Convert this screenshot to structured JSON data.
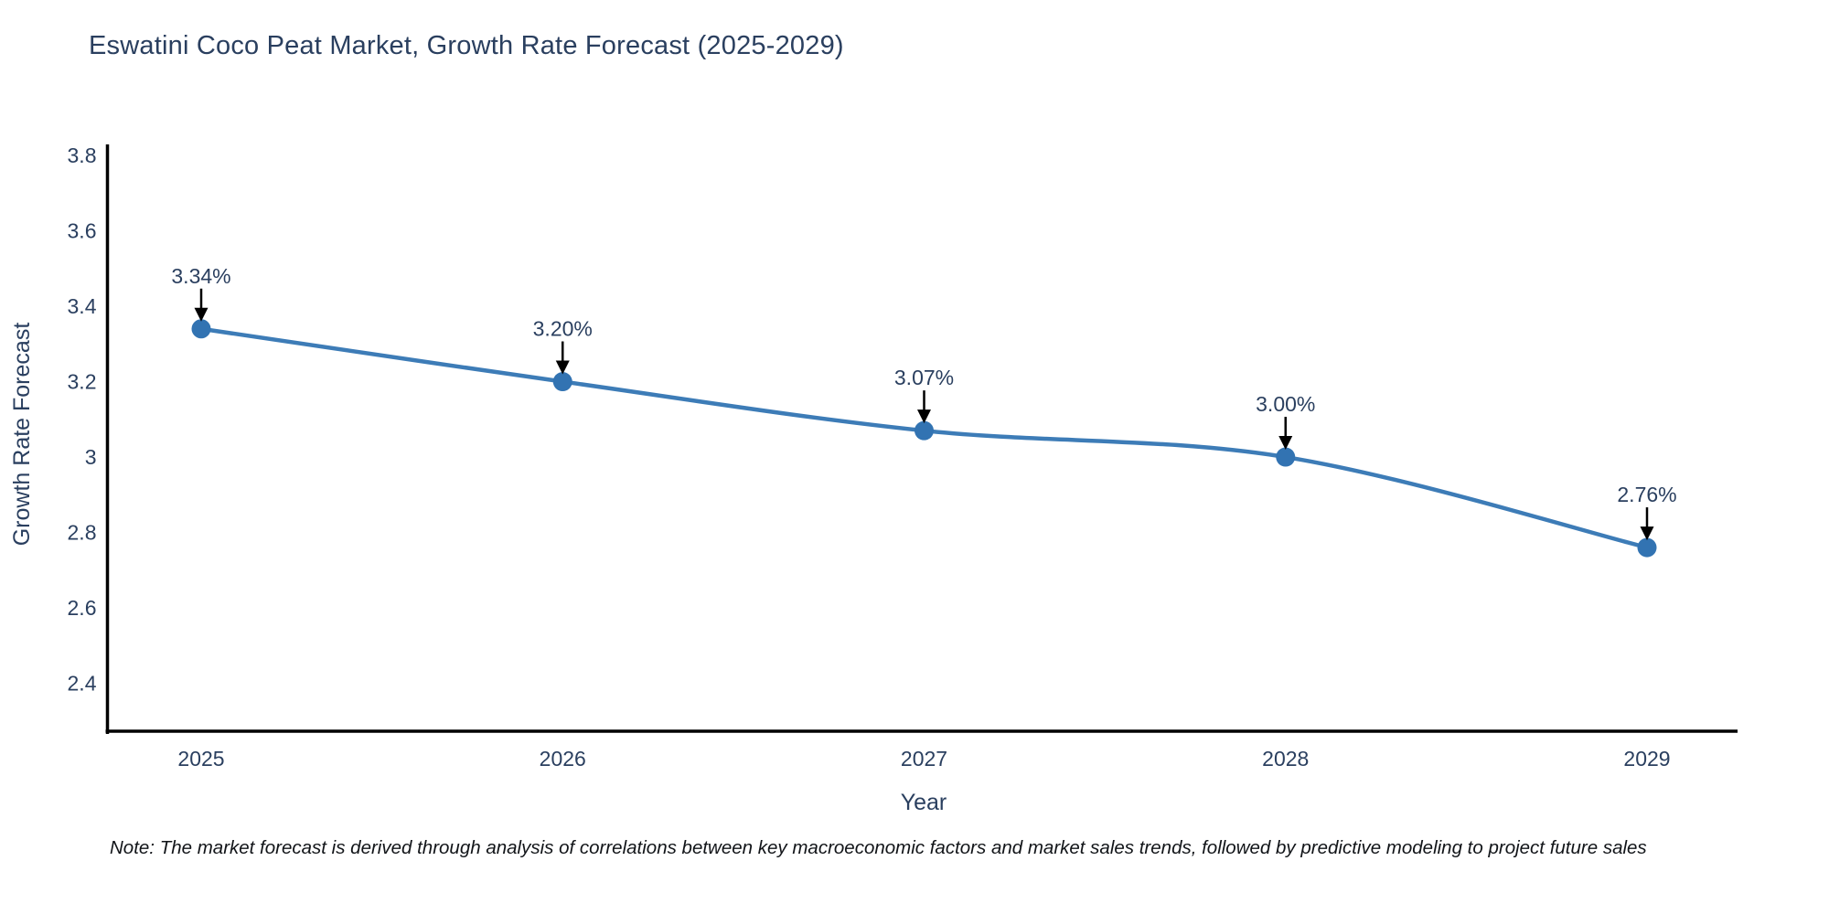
{
  "title": "Eswatini Coco Peat Market, Growth Rate Forecast (2025-2029)",
  "footnote": "Note: The market forecast is derived through analysis of correlations between key macroeconomic factors and market sales trends, followed by predictive modeling to project future sales",
  "chart_data": {
    "type": "line",
    "title": "Eswatini Coco Peat Market, Growth Rate Forecast (2025-2029)",
    "xlabel": "Year",
    "ylabel": "Growth Rate Forecast",
    "categories": [
      "2025",
      "2026",
      "2027",
      "2028",
      "2029"
    ],
    "series": [
      {
        "name": "Growth Rate Forecast",
        "values": [
          3.34,
          3.2,
          3.07,
          3.0,
          2.76
        ]
      }
    ],
    "point_labels": [
      "3.34%",
      "3.20%",
      "3.07%",
      "3.00%",
      "2.76%"
    ],
    "y_ticks": [
      3.8,
      3.6,
      3.4,
      3.2,
      3,
      2.8,
      2.6,
      2.4
    ],
    "ylim": [
      2.273,
      3.829
    ],
    "grid": false,
    "legend_position": "none",
    "line_shape": "spline",
    "colors": {
      "line": "#3d7cb7",
      "marker": "#3273b2",
      "axis": "#000000",
      "text": "#2a3f5f",
      "annotation_arrow": "#000000"
    }
  }
}
